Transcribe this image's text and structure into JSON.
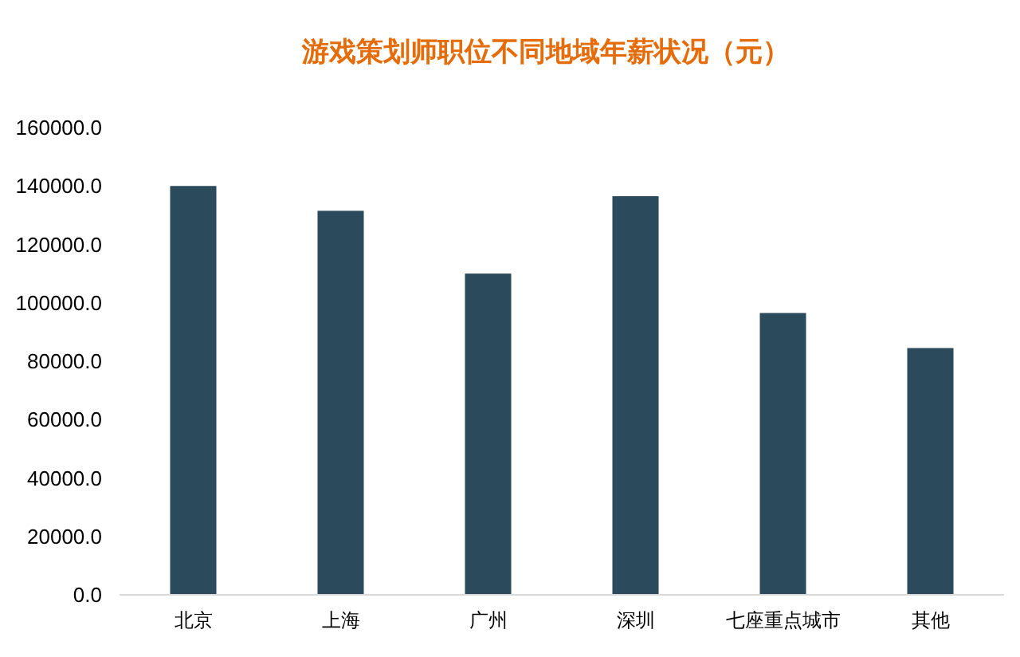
{
  "chart_data": {
    "type": "bar",
    "title": "游戏策划师职位不同地域年薪状况（元）",
    "categories": [
      "北京",
      "上海",
      "广州",
      "深圳",
      "七座重点城市",
      "其他"
    ],
    "values": [
      140000,
      131500,
      110000,
      136500,
      96500,
      84500
    ],
    "color": "#2b4a5c",
    "ylim": [
      0,
      160000
    ],
    "yticks": [
      {
        "value": 0,
        "label": "0.0"
      },
      {
        "value": 20000,
        "label": "20000.0"
      },
      {
        "value": 40000,
        "label": "40000.0"
      },
      {
        "value": 60000,
        "label": "60000.0"
      },
      {
        "value": 80000,
        "label": "80000.0"
      },
      {
        "value": 100000,
        "label": "100000.0"
      },
      {
        "value": 120000,
        "label": "120000.0"
      },
      {
        "value": 140000,
        "label": "140000.0"
      },
      {
        "value": 160000,
        "label": "160000.0"
      }
    ],
    "grid": false
  }
}
